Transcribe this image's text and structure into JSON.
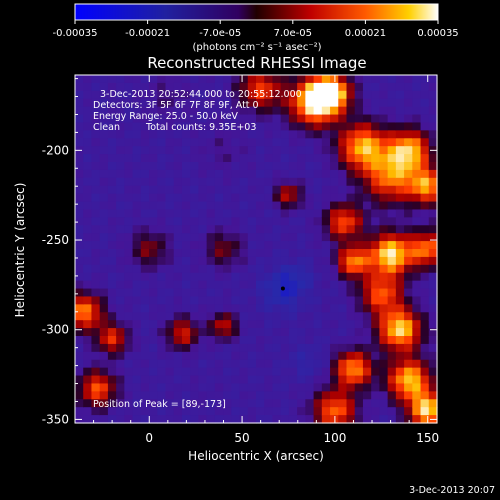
{
  "chart_data": {
    "type": "heatmap",
    "title": "Reconstructed RHESSI Image",
    "xlabel": "Heliocentric X (arcsec)",
    "ylabel": "Heliocentric Y (arcsec)",
    "xlim": [
      -40,
      155
    ],
    "ylim": [
      -352,
      -158
    ],
    "x_ticks": [
      "0",
      "50",
      "100",
      "150"
    ],
    "x_tick_values": [
      0,
      50,
      100,
      150
    ],
    "y_ticks": [
      "-200",
      "-250",
      "-300",
      "-350"
    ],
    "y_tick_values": [
      -200,
      -250,
      -300,
      -350
    ],
    "colorbar": {
      "min": -0.00035,
      "max": 0.00035,
      "tick_labels": [
        "-0.00035",
        "-0.00021",
        "-7.0e-05",
        "7.0e-05",
        "0.00021",
        "0.00035"
      ],
      "tick_values": [
        -0.00035,
        -0.00021,
        -7e-05,
        7e-05,
        0.00021,
        0.00035
      ],
      "units_label": "(photons cm⁻² s⁻¹ asec⁻²)"
    },
    "annotations": {
      "time_range": "3-Dec-2013 20:52:44.000 to 20:55:12.000",
      "detectors": "Detectors: 3F 5F 6F 7F 8F 9F, Att 0",
      "energy": "Energy Range: 25.0 - 50.0 keV",
      "method": "Clean",
      "counts": "Total counts: 9.35E+03",
      "peak": "Position of Peak = [89,-173]"
    },
    "peak_position": [
      89,
      -173
    ],
    "blobs": [
      {
        "x": 89,
        "y": -173,
        "value": 0.00034,
        "sigma": 9
      },
      {
        "x": 98,
        "y": -168,
        "value": 0.0003,
        "sigma": 7
      },
      {
        "x": 60,
        "y": -166,
        "value": 0.00016,
        "sigma": 8
      },
      {
        "x": 115,
        "y": -198,
        "value": 0.00026,
        "sigma": 9
      },
      {
        "x": 140,
        "y": -200,
        "value": 0.00025,
        "sigma": 8
      },
      {
        "x": 130,
        "y": -215,
        "value": 0.0002,
        "sigma": 10
      },
      {
        "x": 150,
        "y": -220,
        "value": 0.00022,
        "sigma": 7
      },
      {
        "x": 105,
        "y": -240,
        "value": 0.00018,
        "sigma": 7
      },
      {
        "x": 130,
        "y": -258,
        "value": 0.00032,
        "sigma": 8
      },
      {
        "x": 110,
        "y": -262,
        "value": 0.00022,
        "sigma": 6
      },
      {
        "x": 150,
        "y": -255,
        "value": 0.0002,
        "sigma": 7
      },
      {
        "x": 125,
        "y": -280,
        "value": 0.00018,
        "sigma": 8
      },
      {
        "x": 135,
        "y": -300,
        "value": 0.0003,
        "sigma": 8
      },
      {
        "x": 110,
        "y": -322,
        "value": 0.00024,
        "sigma": 7
      },
      {
        "x": 140,
        "y": -328,
        "value": 0.00028,
        "sigma": 8
      },
      {
        "x": 100,
        "y": -345,
        "value": 0.0002,
        "sigma": 8
      },
      {
        "x": 150,
        "y": -345,
        "value": 0.0003,
        "sigma": 7
      },
      {
        "x": -35,
        "y": -290,
        "value": 0.00022,
        "sigma": 7
      },
      {
        "x": -20,
        "y": -305,
        "value": 0.00014,
        "sigma": 6
      },
      {
        "x": -28,
        "y": -333,
        "value": 0.00018,
        "sigma": 7
      },
      {
        "x": 18,
        "y": -302,
        "value": 0.00012,
        "sigma": 6
      },
      {
        "x": 40,
        "y": -298,
        "value": 0.00011,
        "sigma": 5
      },
      {
        "x": 75,
        "y": -225,
        "value": 0.0001,
        "sigma": 5
      },
      {
        "x": 0,
        "y": -255,
        "value": 5e-05,
        "sigma": 7
      },
      {
        "x": 40,
        "y": -255,
        "value": 4e-05,
        "sigma": 7
      },
      {
        "x": 72,
        "y": -278,
        "value": -0.0002,
        "sigma": 8
      },
      {
        "x": 80,
        "y": -270,
        "value": -0.00014,
        "sigma": 6
      },
      {
        "x": 85,
        "y": -318,
        "value": -0.00014,
        "sigma": 7
      },
      {
        "x": 30,
        "y": -335,
        "value": -8e-05,
        "sigma": 6
      },
      {
        "x": 10,
        "y": -170,
        "value": -4e-05,
        "sigma": 8
      },
      {
        "x": 40,
        "y": -200,
        "value": -5e-05,
        "sigma": 9
      }
    ]
  },
  "footer": {
    "timestamp": "3-Dec-2013 20:07"
  }
}
